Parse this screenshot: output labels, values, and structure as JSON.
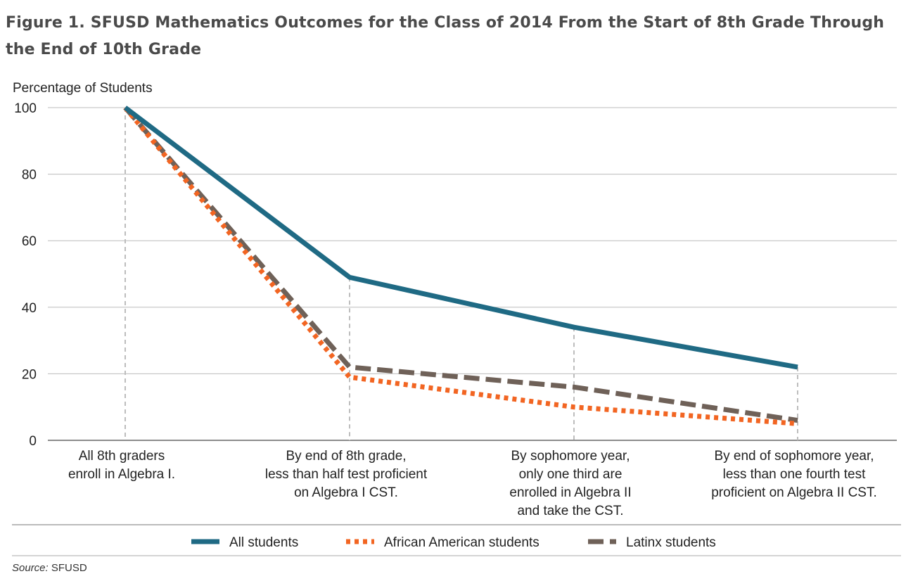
{
  "title": "Figure 1. SFUSD Mathematics Outcomes for the Class of 2014 From the Start of 8th Grade Through the End of 10th Grade",
  "source": {
    "label": "Source:",
    "text": "SFUSD"
  },
  "chart_data": {
    "type": "line",
    "title": "Figure 1. SFUSD Mathematics Outcomes for the Class of 2014 From the Start of 8th Grade Through the End of 10th Grade",
    "ylabel": "Percentage of Students",
    "xlabel": "",
    "ylim": [
      0,
      100
    ],
    "yticks": [
      0,
      20,
      40,
      60,
      80,
      100
    ],
    "grid": true,
    "legend_position": "bottom",
    "categories": [
      [
        "All 8th graders",
        "enroll in Algebra I."
      ],
      [
        "By end of 8th grade,",
        "less than half test proficient",
        "on Algebra I CST."
      ],
      [
        "By sophomore year,",
        "only one third are",
        "enrolled in Algebra II",
        "and take the CST."
      ],
      [
        "By end of sophomore year,",
        "less than one fourth test",
        "proficient on Algebra II CST."
      ]
    ],
    "series": [
      {
        "name": "All students",
        "values": [
          100,
          49,
          34,
          22
        ],
        "color": "#1f6a84",
        "style": "solid"
      },
      {
        "name": "African American students",
        "values": [
          100,
          19,
          10,
          5
        ],
        "color": "#f26522",
        "style": "dotted"
      },
      {
        "name": "Latinx students",
        "values": [
          100,
          22,
          16,
          6
        ],
        "color": "#6f6158",
        "style": "dashed"
      }
    ]
  }
}
